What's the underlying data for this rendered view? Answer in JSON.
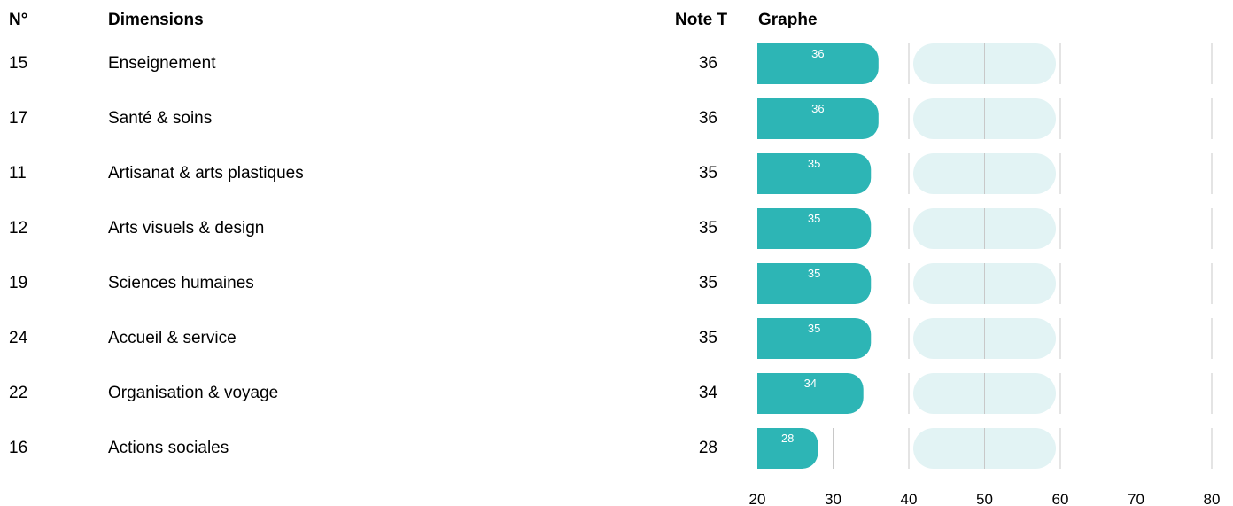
{
  "headers": {
    "num": "N°",
    "dimensions": "Dimensions",
    "note": "Note T",
    "graph": "Graphe"
  },
  "rows": [
    {
      "num": "15",
      "dimension": "Enseignement",
      "note": "36"
    },
    {
      "num": "17",
      "dimension": "Santé & soins",
      "note": "36"
    },
    {
      "num": "11",
      "dimension": "Artisanat & arts plastiques",
      "note": "35"
    },
    {
      "num": "12",
      "dimension": "Arts visuels & design",
      "note": "35"
    },
    {
      "num": "19",
      "dimension": "Sciences humaines",
      "note": "35"
    },
    {
      "num": "24",
      "dimension": "Accueil & service",
      "note": "35"
    },
    {
      "num": "22",
      "dimension": "Organisation & voyage",
      "note": "34"
    },
    {
      "num": "16",
      "dimension": "Actions sociales",
      "note": "28"
    }
  ],
  "chart_data": {
    "type": "bar",
    "orientation": "horizontal",
    "categories": [
      "Enseignement",
      "Santé & soins",
      "Artisanat & arts plastiques",
      "Arts visuels & design",
      "Sciences humaines",
      "Accueil & service",
      "Organisation & voyage",
      "Actions sociales"
    ],
    "values": [
      36,
      36,
      35,
      35,
      35,
      35,
      34,
      28
    ],
    "xlim": [
      20,
      80
    ],
    "xticks": [
      20,
      30,
      40,
      50,
      60,
      70,
      80
    ],
    "reference_band": [
      40,
      60
    ],
    "reference_line": 50,
    "grid": true,
    "colors": {
      "bar": "#2db5b5",
      "band": "#e2f3f4",
      "grid": "#c8c8c8",
      "bar_label": "#ffffff"
    }
  }
}
